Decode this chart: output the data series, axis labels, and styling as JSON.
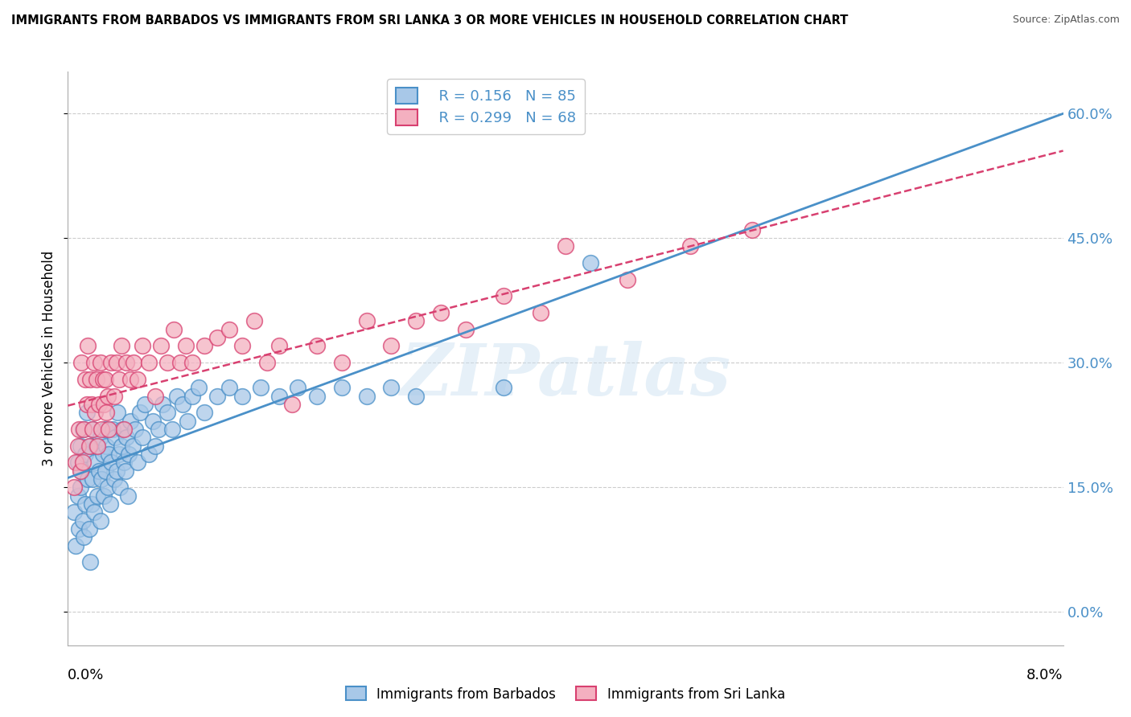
{
  "title": "IMMIGRANTS FROM BARBADOS VS IMMIGRANTS FROM SRI LANKA 3 OR MORE VEHICLES IN HOUSEHOLD CORRELATION CHART",
  "source": "Source: ZipAtlas.com",
  "ylabel": "3 or more Vehicles in Household",
  "ytick_vals": [
    0,
    15,
    30,
    45,
    60
  ],
  "ytick_labels": [
    "0.0%",
    "15.0%",
    "30.0%",
    "45.0%",
    "60.0%"
  ],
  "xmin": 0.0,
  "xmax": 8.0,
  "ymin": -4.0,
  "ymax": 65.0,
  "barbados_color": "#a8c8e8",
  "barbados_edge": "#4a90c8",
  "srilanka_color": "#f4b0c0",
  "srilanka_edge": "#d84070",
  "barbados_R": 0.156,
  "barbados_N": 85,
  "srilanka_R": 0.299,
  "srilanka_N": 68,
  "barbados_line_color": "#4a90c8",
  "srilanka_line_color": "#d84070",
  "watermark_text": "ZIPatlas",
  "legend_label_barbados": "Immigrants from Barbados",
  "legend_label_srilanka": "Immigrants from Sri Lanka",
  "barbados_x": [
    0.05,
    0.06,
    0.08,
    0.08,
    0.09,
    0.1,
    0.1,
    0.11,
    0.12,
    0.12,
    0.13,
    0.14,
    0.14,
    0.15,
    0.16,
    0.17,
    0.18,
    0.18,
    0.19,
    0.2,
    0.2,
    0.21,
    0.22,
    0.23,
    0.24,
    0.25,
    0.26,
    0.26,
    0.27,
    0.28,
    0.29,
    0.3,
    0.3,
    0.31,
    0.32,
    0.33,
    0.34,
    0.35,
    0.36,
    0.37,
    0.38,
    0.39,
    0.4,
    0.41,
    0.42,
    0.43,
    0.44,
    0.45,
    0.46,
    0.47,
    0.48,
    0.49,
    0.5,
    0.52,
    0.54,
    0.56,
    0.58,
    0.6,
    0.62,
    0.65,
    0.68,
    0.7,
    0.73,
    0.76,
    0.8,
    0.84,
    0.88,
    0.92,
    0.96,
    1.0,
    1.05,
    1.1,
    1.2,
    1.3,
    1.4,
    1.55,
    1.7,
    1.85,
    2.0,
    2.2,
    2.4,
    2.6,
    2.8,
    3.5,
    4.2
  ],
  "barbados_y": [
    12.0,
    8.0,
    14.0,
    18.0,
    10.0,
    20.0,
    15.0,
    17.0,
    11.0,
    22.0,
    9.0,
    19.0,
    13.0,
    24.0,
    16.0,
    10.0,
    20.0,
    6.0,
    13.0,
    16.0,
    22.0,
    12.0,
    18.0,
    20.0,
    14.0,
    17.0,
    11.0,
    21.0,
    16.0,
    19.0,
    14.0,
    17.0,
    22.0,
    20.0,
    15.0,
    19.0,
    13.0,
    18.0,
    22.0,
    16.0,
    21.0,
    17.0,
    24.0,
    19.0,
    15.0,
    20.0,
    22.0,
    18.0,
    17.0,
    21.0,
    14.0,
    19.0,
    23.0,
    20.0,
    22.0,
    18.0,
    24.0,
    21.0,
    25.0,
    19.0,
    23.0,
    20.0,
    22.0,
    25.0,
    24.0,
    22.0,
    26.0,
    25.0,
    23.0,
    26.0,
    27.0,
    24.0,
    26.0,
    27.0,
    26.0,
    27.0,
    26.0,
    27.0,
    26.0,
    27.0,
    26.0,
    27.0,
    26.0,
    27.0,
    42.0
  ],
  "srilanka_x": [
    0.05,
    0.06,
    0.08,
    0.09,
    0.1,
    0.11,
    0.12,
    0.13,
    0.14,
    0.15,
    0.16,
    0.17,
    0.18,
    0.19,
    0.2,
    0.21,
    0.22,
    0.23,
    0.24,
    0.25,
    0.26,
    0.27,
    0.28,
    0.29,
    0.3,
    0.31,
    0.32,
    0.33,
    0.35,
    0.37,
    0.39,
    0.41,
    0.43,
    0.45,
    0.47,
    0.5,
    0.53,
    0.56,
    0.6,
    0.65,
    0.7,
    0.75,
    0.8,
    0.85,
    0.9,
    0.95,
    1.0,
    1.1,
    1.2,
    1.3,
    1.4,
    1.5,
    1.6,
    1.7,
    1.8,
    2.0,
    2.2,
    2.4,
    2.6,
    2.8,
    3.0,
    3.2,
    3.5,
    3.8,
    4.0,
    4.5,
    5.0,
    5.5
  ],
  "srilanka_y": [
    15.0,
    18.0,
    20.0,
    22.0,
    17.0,
    30.0,
    18.0,
    22.0,
    28.0,
    25.0,
    32.0,
    20.0,
    28.0,
    25.0,
    22.0,
    30.0,
    24.0,
    28.0,
    20.0,
    25.0,
    30.0,
    22.0,
    28.0,
    25.0,
    28.0,
    24.0,
    26.0,
    22.0,
    30.0,
    26.0,
    30.0,
    28.0,
    32.0,
    22.0,
    30.0,
    28.0,
    30.0,
    28.0,
    32.0,
    30.0,
    26.0,
    32.0,
    30.0,
    34.0,
    30.0,
    32.0,
    30.0,
    32.0,
    33.0,
    34.0,
    32.0,
    35.0,
    30.0,
    32.0,
    25.0,
    32.0,
    30.0,
    35.0,
    32.0,
    35.0,
    36.0,
    34.0,
    38.0,
    36.0,
    44.0,
    40.0,
    44.0,
    46.0
  ],
  "legend_R_color": "#4a90c8",
  "legend_N_color": "#d84070"
}
